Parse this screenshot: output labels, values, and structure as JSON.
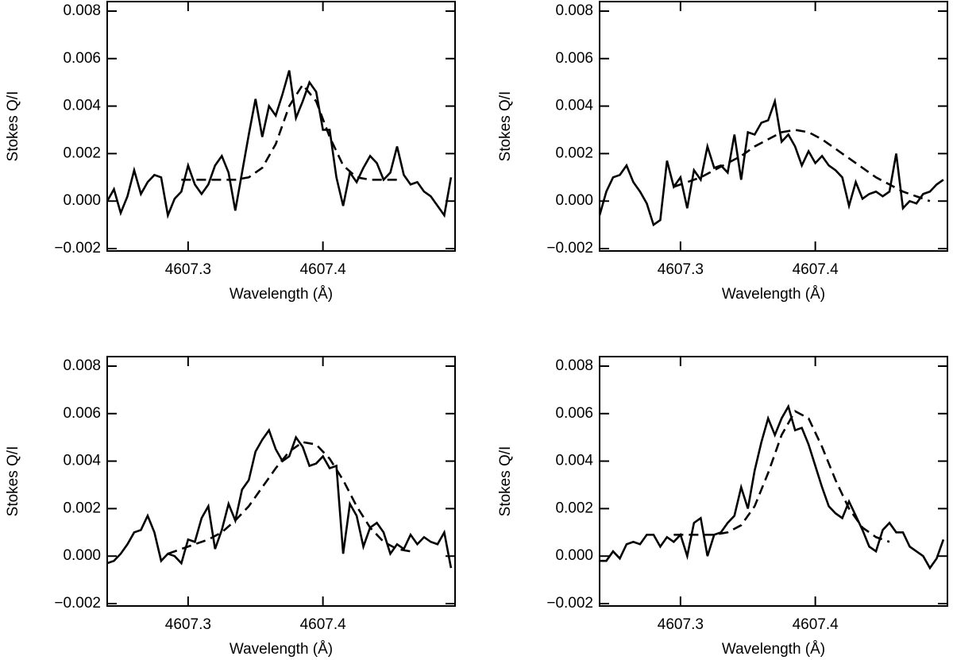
{
  "chart_data": [
    {
      "type": "line",
      "xlabel": "Wavelength (Å)",
      "ylabel": "Stokes Q/I",
      "xlim": [
        4607.24,
        4607.498
      ],
      "xticks": [
        4607.3,
        4607.4
      ],
      "ylim": [
        -0.0021,
        0.0084
      ],
      "yticks": [
        {
          "value": -0.002,
          "label": "−0.002"
        },
        {
          "value": 0,
          "label": "0.000"
        },
        0.002,
        0.004,
        0.006,
        0.008
      ],
      "series": [
        {
          "color": "#000000",
          "line_style": "solid",
          "x": [
            4607.24,
            4607.245,
            4607.25,
            4607.255,
            4607.26,
            4607.265,
            4607.27,
            4607.275,
            4607.28,
            4607.285,
            4607.29,
            4607.295,
            4607.3,
            4607.305,
            4607.31,
            4607.315,
            4607.32,
            4607.325,
            4607.33,
            4607.335,
            4607.34,
            4607.345,
            4607.35,
            4607.355,
            4607.36,
            4607.365,
            4607.37,
            4607.375,
            4607.38,
            4607.385,
            4607.39,
            4607.395,
            4607.4,
            4607.405,
            4607.41,
            4607.415,
            4607.42,
            4607.425,
            4607.43,
            4607.435,
            4607.44,
            4607.445,
            4607.45,
            4607.455,
            4607.46,
            4607.465,
            4607.47,
            4607.475,
            4607.48,
            4607.485,
            4607.49,
            4607.495
          ],
          "values": [
            0.0,
            0.0005,
            -0.0005,
            0.0002,
            0.0013,
            0.0003,
            0.0008,
            0.0011,
            0.001,
            -0.0006,
            0.0001,
            0.0004,
            0.0015,
            0.0007,
            0.0003,
            0.0007,
            0.0015,
            0.0019,
            0.0012,
            -0.0004,
            0.0012,
            0.0028,
            0.0043,
            0.0027,
            0.004,
            0.0036,
            0.0045,
            0.0055,
            0.0035,
            0.0042,
            0.005,
            0.0046,
            0.003,
            0.003,
            0.001,
            -0.0002,
            0.0012,
            0.0008,
            0.0014,
            0.0019,
            0.0016,
            0.0009,
            0.0012,
            0.0023,
            0.0011,
            0.0007,
            0.0008,
            0.0004,
            0.0002,
            -0.0002,
            -0.0006,
            0.001
          ]
        },
        {
          "color": "#000000",
          "line_style": "dashed",
          "x": [
            4607.295,
            4607.305,
            4607.315,
            4607.325,
            4607.335,
            4607.345,
            4607.355,
            4607.365,
            4607.375,
            4607.385,
            4607.395,
            4607.405,
            4607.415,
            4607.425,
            4607.435,
            4607.445,
            4607.455
          ],
          "values": [
            0.0009,
            0.0009,
            0.0009,
            0.0009,
            0.0009,
            0.001,
            0.0014,
            0.0024,
            0.004,
            0.0049,
            0.0042,
            0.0027,
            0.0015,
            0.001,
            0.0009,
            0.0009,
            0.0009
          ]
        }
      ]
    },
    {
      "type": "line",
      "xlabel": "Wavelength (Å)",
      "ylabel": "Stokes Q/I",
      "xlim": [
        4607.24,
        4607.498
      ],
      "xticks": [
        4607.3,
        4607.4
      ],
      "ylim": [
        -0.0021,
        0.0084
      ],
      "yticks": [
        {
          "value": -0.002,
          "label": "−0.002"
        },
        {
          "value": 0,
          "label": "0.000"
        },
        0.002,
        0.004,
        0.006,
        0.008
      ],
      "series": [
        {
          "color": "#000000",
          "line_style": "solid",
          "x": [
            4607.24,
            4607.245,
            4607.25,
            4607.255,
            4607.26,
            4607.265,
            4607.27,
            4607.275,
            4607.28,
            4607.285,
            4607.29,
            4607.295,
            4607.3,
            4607.305,
            4607.31,
            4607.315,
            4607.32,
            4607.325,
            4607.33,
            4607.335,
            4607.34,
            4607.345,
            4607.35,
            4607.355,
            4607.36,
            4607.365,
            4607.37,
            4607.375,
            4607.38,
            4607.385,
            4607.39,
            4607.395,
            4607.4,
            4607.405,
            4607.41,
            4607.415,
            4607.42,
            4607.425,
            4607.43,
            4607.435,
            4607.44,
            4607.445,
            4607.45,
            4607.455,
            4607.46,
            4607.465,
            4607.47,
            4607.475,
            4607.48,
            4607.485,
            4607.49,
            4607.495
          ],
          "values": [
            -0.0006,
            0.0004,
            0.001,
            0.0011,
            0.0015,
            0.0008,
            0.0004,
            -0.0001,
            -0.001,
            -0.0008,
            0.0017,
            0.0006,
            0.001,
            -0.0003,
            0.0013,
            0.0009,
            0.0023,
            0.0014,
            0.0015,
            0.0012,
            0.0028,
            0.0009,
            0.0029,
            0.0028,
            0.0033,
            0.0034,
            0.0042,
            0.0025,
            0.0028,
            0.0023,
            0.0015,
            0.0021,
            0.0016,
            0.0019,
            0.0015,
            0.0013,
            0.001,
            -0.0002,
            0.0008,
            0.0001,
            0.0003,
            0.0004,
            0.0002,
            0.0004,
            0.002,
            -0.0003,
            0.0,
            -0.0001,
            0.0003,
            0.0004,
            0.0007,
            0.0009
          ]
        },
        {
          "color": "#000000",
          "line_style": "dashed",
          "x": [
            4607.295,
            4607.305,
            4607.315,
            4607.325,
            4607.335,
            4607.345,
            4607.355,
            4607.365,
            4607.375,
            4607.385,
            4607.395,
            4607.405,
            4607.415,
            4607.425,
            4607.435,
            4607.445,
            4607.455,
            4607.465,
            4607.475,
            4607.485
          ],
          "values": [
            0.0006,
            0.0008,
            0.001,
            0.0013,
            0.0016,
            0.0019,
            0.0023,
            0.0026,
            0.0029,
            0.003,
            0.0029,
            0.0026,
            0.0022,
            0.0018,
            0.0014,
            0.001,
            0.0007,
            0.0004,
            0.0002,
            0.0
          ]
        }
      ]
    },
    {
      "type": "line",
      "xlabel": "Wavelength (Å)",
      "ylabel": "Stokes Q/I",
      "xlim": [
        4607.24,
        4607.498
      ],
      "xticks": [
        4607.3,
        4607.4
      ],
      "ylim": [
        -0.0021,
        0.0084
      ],
      "yticks": [
        {
          "value": -0.002,
          "label": "−0.002"
        },
        {
          "value": 0,
          "label": "0.000"
        },
        0.002,
        0.004,
        0.006,
        0.008
      ],
      "series": [
        {
          "color": "#000000",
          "line_style": "solid",
          "x": [
            4607.24,
            4607.245,
            4607.25,
            4607.255,
            4607.26,
            4607.265,
            4607.27,
            4607.275,
            4607.28,
            4607.285,
            4607.29,
            4607.295,
            4607.3,
            4607.305,
            4607.31,
            4607.315,
            4607.32,
            4607.325,
            4607.33,
            4607.335,
            4607.34,
            4607.345,
            4607.35,
            4607.355,
            4607.36,
            4607.365,
            4607.37,
            4607.375,
            4607.38,
            4607.385,
            4607.39,
            4607.395,
            4607.4,
            4607.405,
            4607.41,
            4607.415,
            4607.42,
            4607.425,
            4607.43,
            4607.435,
            4607.44,
            4607.445,
            4607.45,
            4607.455,
            4607.46,
            4607.465,
            4607.47,
            4607.475,
            4607.48,
            4607.485,
            4607.49,
            4607.495
          ],
          "values": [
            -0.0003,
            -0.0002,
            0.0001,
            0.0005,
            0.001,
            0.0011,
            0.0017,
            0.001,
            -0.0002,
            0.0001,
            0.0,
            -0.0003,
            0.0007,
            0.0006,
            0.0016,
            0.0021,
            0.0003,
            0.0011,
            0.0022,
            0.0015,
            0.0028,
            0.0032,
            0.0044,
            0.0049,
            0.0053,
            0.0045,
            0.004,
            0.0042,
            0.005,
            0.0046,
            0.0038,
            0.0039,
            0.0042,
            0.0037,
            0.0038,
            0.0001,
            0.0022,
            0.0017,
            0.0004,
            0.0012,
            0.0014,
            0.001,
            0.0001,
            0.0005,
            0.0003,
            0.0009,
            0.0005,
            0.0008,
            0.0006,
            0.0005,
            0.001,
            -0.0005
          ]
        },
        {
          "color": "#000000",
          "line_style": "dashed",
          "x": [
            4607.285,
            4607.295,
            4607.305,
            4607.315,
            4607.325,
            4607.335,
            4607.345,
            4607.355,
            4607.365,
            4607.375,
            4607.385,
            4607.395,
            4607.405,
            4607.415,
            4607.425,
            4607.435,
            4607.445,
            4607.455,
            4607.465
          ],
          "values": [
            0.0001,
            0.0003,
            0.0005,
            0.0007,
            0.001,
            0.0015,
            0.0021,
            0.0029,
            0.0037,
            0.0044,
            0.0048,
            0.0047,
            0.0041,
            0.0032,
            0.0021,
            0.0012,
            0.0006,
            0.0003,
            0.0002
          ]
        }
      ]
    },
    {
      "type": "line",
      "xlabel": "Wavelength (Å)",
      "ylabel": "Stokes Q/I",
      "xlim": [
        4607.24,
        4607.498
      ],
      "xticks": [
        4607.3,
        4607.4
      ],
      "ylim": [
        -0.0021,
        0.0084
      ],
      "yticks": [
        {
          "value": -0.002,
          "label": "−0.002"
        },
        {
          "value": 0,
          "label": "0.000"
        },
        0.002,
        0.004,
        0.006,
        0.008
      ],
      "series": [
        {
          "color": "#000000",
          "line_style": "solid",
          "x": [
            4607.24,
            4607.245,
            4607.25,
            4607.255,
            4607.26,
            4607.265,
            4607.27,
            4607.275,
            4607.28,
            4607.285,
            4607.29,
            4607.295,
            4607.3,
            4607.305,
            4607.31,
            4607.315,
            4607.32,
            4607.325,
            4607.33,
            4607.335,
            4607.34,
            4607.345,
            4607.35,
            4607.355,
            4607.36,
            4607.365,
            4607.37,
            4607.375,
            4607.38,
            4607.385,
            4607.39,
            4607.395,
            4607.4,
            4607.405,
            4607.41,
            4607.415,
            4607.42,
            4607.425,
            4607.43,
            4607.435,
            4607.44,
            4607.445,
            4607.45,
            4607.455,
            4607.46,
            4607.465,
            4607.47,
            4607.475,
            4607.48,
            4607.485,
            4607.49,
            4607.495
          ],
          "values": [
            -0.0002,
            -0.0002,
            0.0002,
            -0.0001,
            0.0005,
            0.0006,
            0.0005,
            0.0009,
            0.0009,
            0.0004,
            0.0008,
            0.0006,
            0.0009,
            0.0,
            0.0014,
            0.0016,
            0.0,
            0.0009,
            0.001,
            0.0014,
            0.0017,
            0.0029,
            0.002,
            0.0036,
            0.0048,
            0.0058,
            0.0051,
            0.0058,
            0.0063,
            0.0053,
            0.0054,
            0.0047,
            0.0038,
            0.0029,
            0.0021,
            0.0018,
            0.0016,
            0.0023,
            0.0017,
            0.0011,
            0.0004,
            0.0002,
            0.0011,
            0.0014,
            0.001,
            0.001,
            0.0004,
            0.0002,
            0.0,
            -0.0005,
            -0.0001,
            0.0007
          ]
        },
        {
          "color": "#000000",
          "line_style": "dashed",
          "x": [
            4607.295,
            4607.305,
            4607.315,
            4607.325,
            4607.335,
            4607.345,
            4607.355,
            4607.365,
            4607.375,
            4607.385,
            4607.395,
            4607.405,
            4607.415,
            4607.425,
            4607.435,
            4607.445,
            4607.455
          ],
          "values": [
            0.0009,
            0.0009,
            0.0009,
            0.0009,
            0.001,
            0.0013,
            0.0021,
            0.0035,
            0.0051,
            0.0061,
            0.0058,
            0.0046,
            0.0032,
            0.002,
            0.0012,
            0.0008,
            0.0006
          ]
        }
      ]
    }
  ]
}
